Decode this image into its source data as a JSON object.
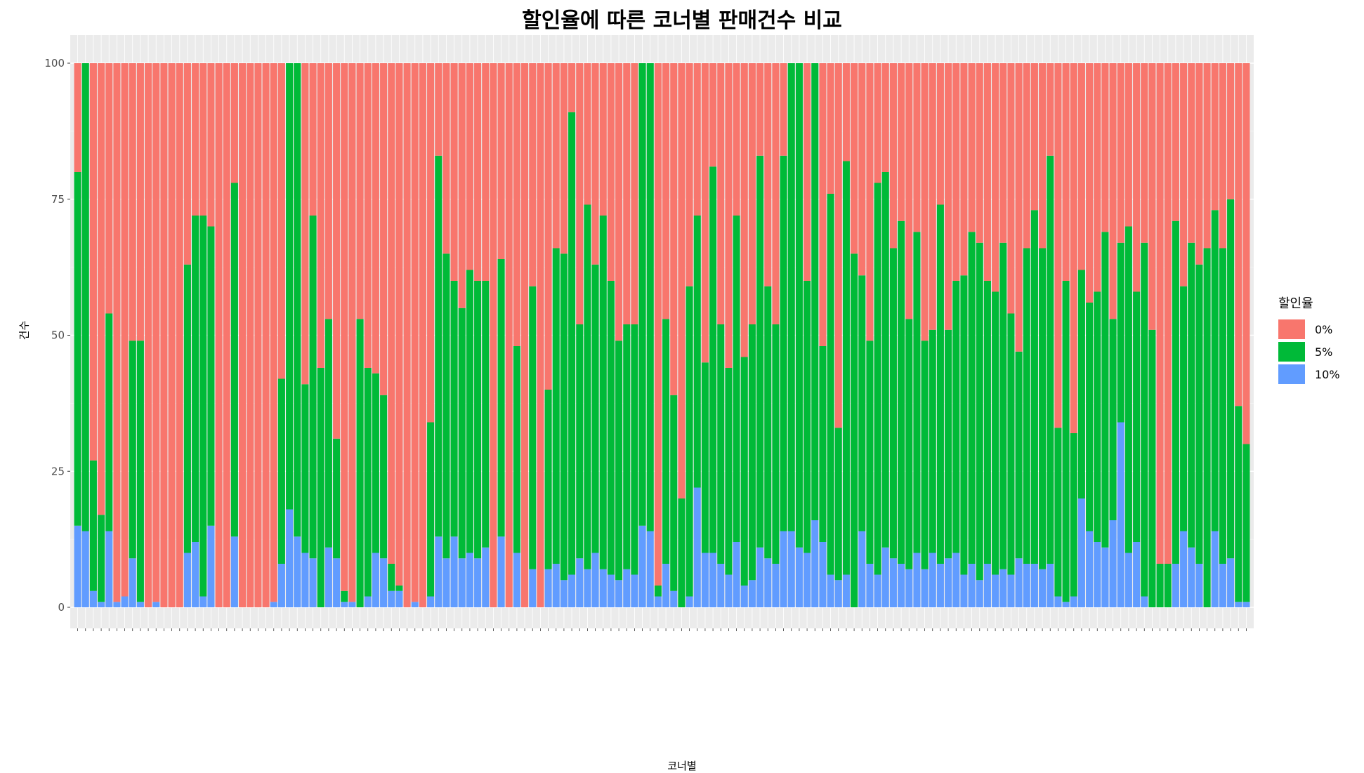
{
  "chart_data": {
    "type": "bar",
    "stacked": true,
    "title": "할인율에 따른 코너별 판매건수 비교",
    "xlabel": "코너별",
    "ylabel": "건수",
    "ylim": [
      0,
      100
    ],
    "y_ticks": [
      0,
      25,
      50,
      75,
      100
    ],
    "grid": true,
    "legend_position": "right",
    "legend_title": "할인율",
    "series": [
      {
        "name": "0%",
        "color": "#F8766D"
      },
      {
        "name": "5%",
        "color": "#00BA38"
      },
      {
        "name": "10%",
        "color": "#619CFF"
      }
    ],
    "categories_note": "약 150개 코너 (x축 레이블이 겹쳐 판독 불가)",
    "pct_10": [
      15,
      14,
      3,
      1,
      14,
      1,
      2,
      9,
      1,
      0,
      1,
      0,
      0,
      0,
      10,
      12,
      2,
      15,
      0,
      0,
      13,
      0,
      0,
      0,
      0,
      1,
      8,
      18,
      13,
      10,
      9,
      0,
      11,
      9,
      1,
      1,
      0,
      2,
      10,
      9,
      3,
      3,
      0,
      1,
      0,
      2,
      13,
      9,
      13,
      9,
      10,
      9,
      11,
      0,
      13,
      0,
      10,
      0,
      7,
      0,
      7,
      8,
      5,
      6,
      9,
      7,
      10,
      7,
      6,
      5,
      7,
      6,
      15,
      14,
      2,
      8,
      3,
      0,
      2,
      22,
      10,
      10,
      8,
      6,
      12,
      4,
      5,
      11,
      9,
      8,
      14,
      14,
      11,
      10,
      16,
      12,
      6,
      5,
      6,
      0,
      14,
      8,
      6,
      11,
      9,
      8,
      7,
      10,
      7,
      10,
      8,
      9,
      10,
      6,
      8,
      5,
      8,
      6,
      7,
      6,
      9,
      8,
      8,
      7,
      8,
      2,
      1,
      2,
      20,
      14,
      12,
      11,
      16,
      34,
      10,
      12,
      2,
      0,
      0,
      0,
      8,
      14,
      11,
      8,
      0,
      14,
      8,
      9,
      1,
      1
    ],
    "pct_5": [
      65,
      86,
      24,
      16,
      40,
      0,
      0,
      40,
      48,
      0,
      0,
      0,
      0,
      0,
      53,
      60,
      70,
      55,
      0,
      0,
      65,
      0,
      0,
      0,
      0,
      0,
      34,
      82,
      87,
      31,
      63,
      44,
      42,
      22,
      2,
      0,
      53,
      42,
      33,
      30,
      5,
      1,
      0,
      0,
      0,
      32,
      70,
      56,
      47,
      46,
      52,
      51,
      49,
      0,
      51,
      0,
      38,
      0,
      52,
      0,
      33,
      58,
      60,
      85,
      43,
      67,
      53,
      65,
      54,
      44,
      45,
      46,
      85,
      86,
      2,
      45,
      36,
      20,
      57,
      50,
      35,
      71,
      44,
      38,
      60,
      42,
      47,
      72,
      50,
      44,
      69,
      86,
      89,
      50,
      84,
      36,
      70,
      28,
      76,
      65,
      47,
      41,
      72,
      69,
      57,
      63,
      46,
      59,
      42,
      41,
      66,
      42,
      50,
      55,
      61,
      62,
      52,
      52,
      60,
      48,
      38,
      58,
      65,
      59,
      75,
      31,
      59,
      30,
      42,
      42,
      46,
      58,
      37,
      33,
      60,
      46,
      65,
      51,
      8,
      8,
      63,
      45,
      56,
      55,
      66,
      59,
      58,
      66,
      36,
      29
    ]
  }
}
